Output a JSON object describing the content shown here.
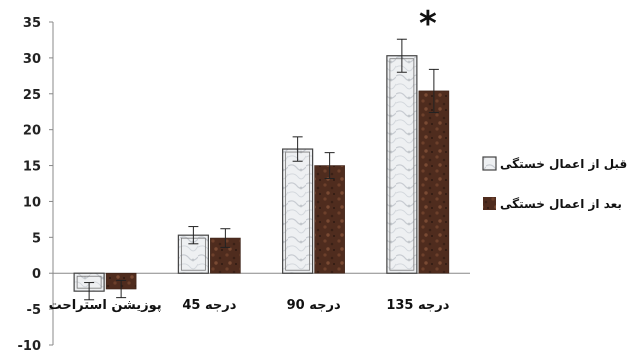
{
  "chart_data": {
    "type": "bar",
    "categories": [
      "پوزیشن استراحت",
      "45 درجه",
      "90 درجه",
      "135 درجه"
    ],
    "series": [
      {
        "name": "قبل از اعمال خستگی",
        "values": [
          -2.5,
          5.3,
          17.3,
          30.3
        ],
        "errors": [
          1.2,
          1.2,
          1.7,
          2.3
        ],
        "color": "#e8ebee"
      },
      {
        "name": "بعد از اعمال خستگی",
        "values": [
          -2.2,
          4.9,
          15.0,
          25.4
        ],
        "errors": [
          1.2,
          1.3,
          1.8,
          3.0
        ],
        "color": "#5a3221"
      }
    ],
    "ylim": [
      -10,
      35
    ],
    "yticks": [
      "-10",
      "-5",
      "0",
      "5",
      "10",
      "15",
      "20",
      "25",
      "30",
      "35"
    ],
    "legend_position": "right",
    "grid": false,
    "annotations": [
      {
        "category": "135 درجه",
        "text": "*"
      }
    ],
    "title": "",
    "xlabel": "",
    "ylabel": ""
  }
}
